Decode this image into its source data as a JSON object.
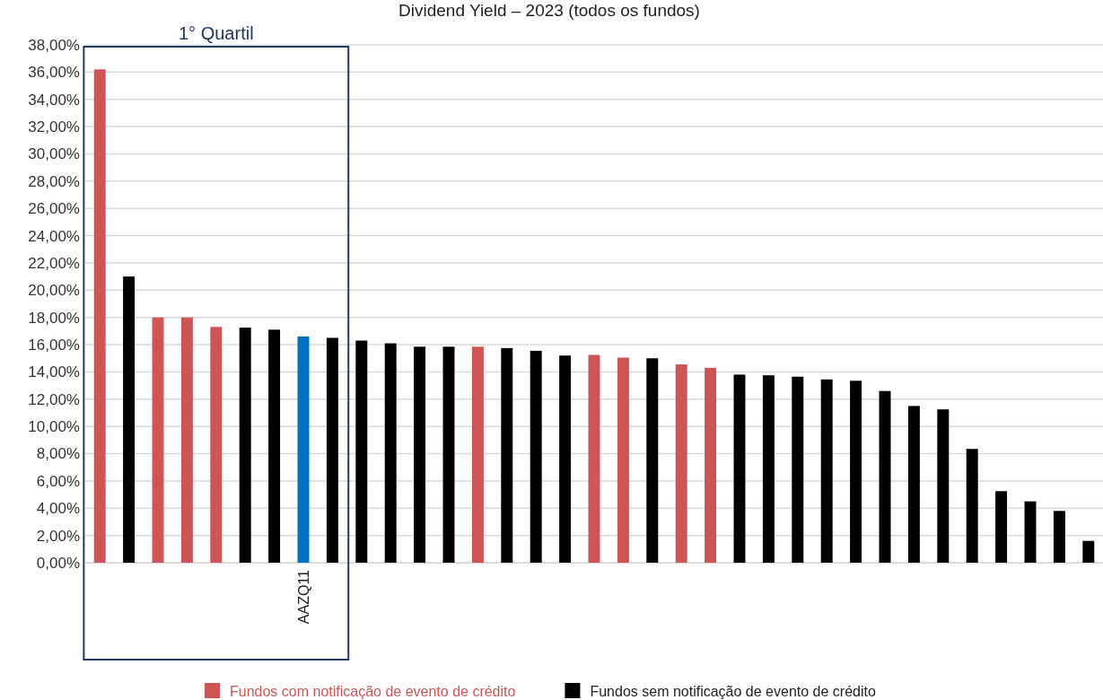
{
  "chart_data": {
    "type": "bar",
    "title": "Dividend Yield – 2023 (todos os fundos)",
    "categories": [
      null,
      null,
      null,
      null,
      null,
      null,
      null,
      "AAZQ11",
      null,
      null,
      null,
      null,
      null,
      null,
      null,
      null,
      null,
      null,
      null,
      null,
      null,
      null,
      null,
      null,
      null,
      null,
      null,
      null,
      null,
      null,
      null,
      null,
      null,
      null,
      null
    ],
    "series": [
      {
        "name": "Fundos com notificação de evento de crédito",
        "color": "#cd5555",
        "values": [
          36.2,
          null,
          18.0,
          18.0,
          17.3,
          null,
          null,
          null,
          null,
          null,
          null,
          null,
          null,
          15.85,
          null,
          null,
          null,
          15.25,
          15.05,
          null,
          14.55,
          14.3,
          null,
          null,
          null,
          null,
          null,
          null,
          null,
          null,
          null,
          null,
          null,
          null,
          null
        ]
      },
      {
        "name": "Fundos sem notificação de evento de crédito",
        "color": "#000000",
        "values": [
          null,
          21.0,
          null,
          null,
          null,
          17.25,
          17.1,
          null,
          16.5,
          16.3,
          16.1,
          15.85,
          15.85,
          null,
          15.75,
          15.55,
          15.2,
          null,
          null,
          15.0,
          null,
          null,
          13.8,
          13.75,
          13.65,
          13.45,
          13.35,
          12.6,
          11.5,
          11.25,
          8.35,
          5.25,
          4.5,
          3.8,
          1.6
        ]
      },
      {
        "color": "#0070c0",
        "values": [
          null,
          null,
          null,
          null,
          null,
          null,
          null,
          16.6,
          null,
          null,
          null,
          null,
          null,
          null,
          null,
          null,
          null,
          null,
          null,
          null,
          null,
          null,
          null,
          null,
          null,
          null,
          null,
          null,
          null,
          null,
          null,
          null,
          null,
          null,
          null
        ]
      }
    ],
    "ylim": [
      0,
      38
    ],
    "yticks": [
      {
        "value": 0,
        "label": "0,00%"
      },
      {
        "value": 2,
        "label": "2,00%"
      },
      {
        "value": 4,
        "label": "4,00%"
      },
      {
        "value": 6,
        "label": "6,00%"
      },
      {
        "value": 8,
        "label": "8,00%"
      },
      {
        "value": 10,
        "label": "10,00%"
      },
      {
        "value": 12,
        "label": "12,00%"
      },
      {
        "value": 14,
        "label": "14,00%"
      },
      {
        "value": 16,
        "label": "16,00%"
      },
      {
        "value": 18,
        "label": "18,00%"
      },
      {
        "value": 20,
        "label": "20,00%"
      },
      {
        "value": 22,
        "label": "22,00%"
      },
      {
        "value": 24,
        "label": "24,00%"
      },
      {
        "value": 26,
        "label": "26,00%"
      },
      {
        "value": 28,
        "label": "28,00%"
      },
      {
        "value": 30,
        "label": "30,00%"
      },
      {
        "value": 32,
        "label": "32,00%"
      },
      {
        "value": 34,
        "label": "34,00%"
      },
      {
        "value": 36,
        "label": "36,00%"
      },
      {
        "value": 38,
        "label": "38,00%"
      }
    ],
    "grid": "y",
    "legend": "bottom",
    "annotations": [
      "1° Quartil"
    ]
  }
}
